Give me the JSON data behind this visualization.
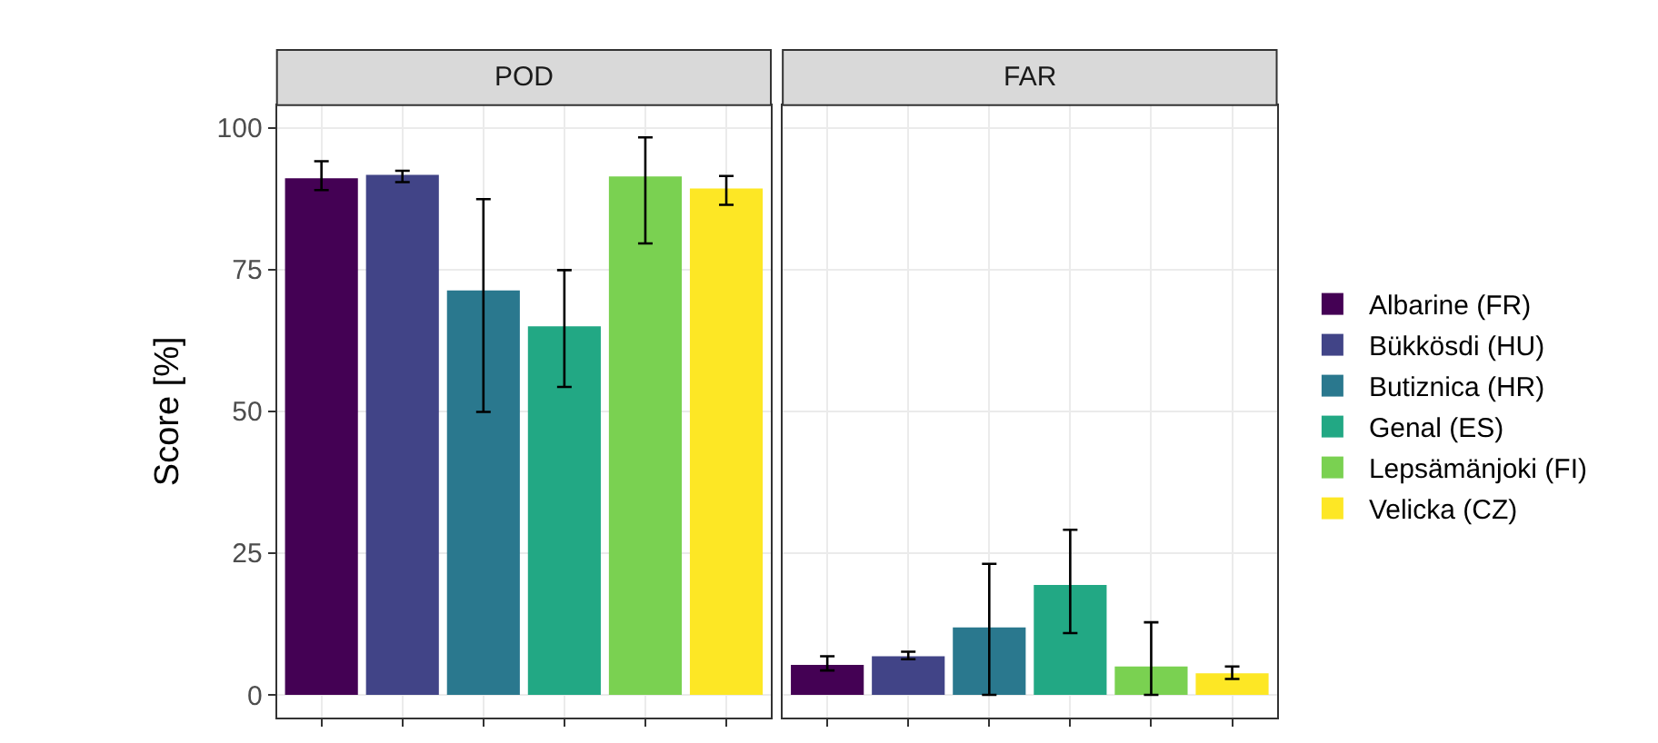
{
  "chart_data": {
    "type": "bar",
    "categories": [
      "POD",
      "FAR"
    ],
    "ylabel": "Score [%]",
    "ylim": [
      -4,
      104
    ],
    "yticks": [
      0,
      25,
      50,
      75,
      100
    ],
    "grid": true,
    "legend": "right",
    "series": [
      {
        "name": "Albarine (FR)",
        "color": "#440154",
        "values": [
          91.1,
          5.3
        ],
        "errors": [
          [
            89.0,
            94.1
          ],
          [
            4.3,
            6.8
          ]
        ]
      },
      {
        "name": "Bükkösdi (HU)",
        "color": "#414487",
        "values": [
          91.7,
          6.8
        ],
        "errors": [
          [
            90.4,
            92.4
          ],
          [
            6.3,
            7.6
          ]
        ]
      },
      {
        "name": "Butiznica (HR)",
        "color": "#2a788e",
        "values": [
          71.3,
          11.9
        ],
        "errors": [
          [
            49.9,
            87.4
          ],
          [
            0,
            23.1
          ]
        ]
      },
      {
        "name": "Genal (ES)",
        "color": "#22a884",
        "values": [
          65.0,
          19.4
        ],
        "errors": [
          [
            54.3,
            74.9
          ],
          [
            10.9,
            29.1
          ]
        ]
      },
      {
        "name": "Lepsämänjoki (FI)",
        "color": "#7ad151",
        "values": [
          91.4,
          5.0
        ],
        "errors": [
          [
            79.6,
            98.3
          ],
          [
            0,
            12.8
          ]
        ]
      },
      {
        "name": "Velicka (CZ)",
        "color": "#fde725",
        "values": [
          89.3,
          3.8
        ],
        "errors": [
          [
            86.4,
            91.5
          ],
          [
            2.8,
            5.0
          ]
        ]
      }
    ]
  }
}
